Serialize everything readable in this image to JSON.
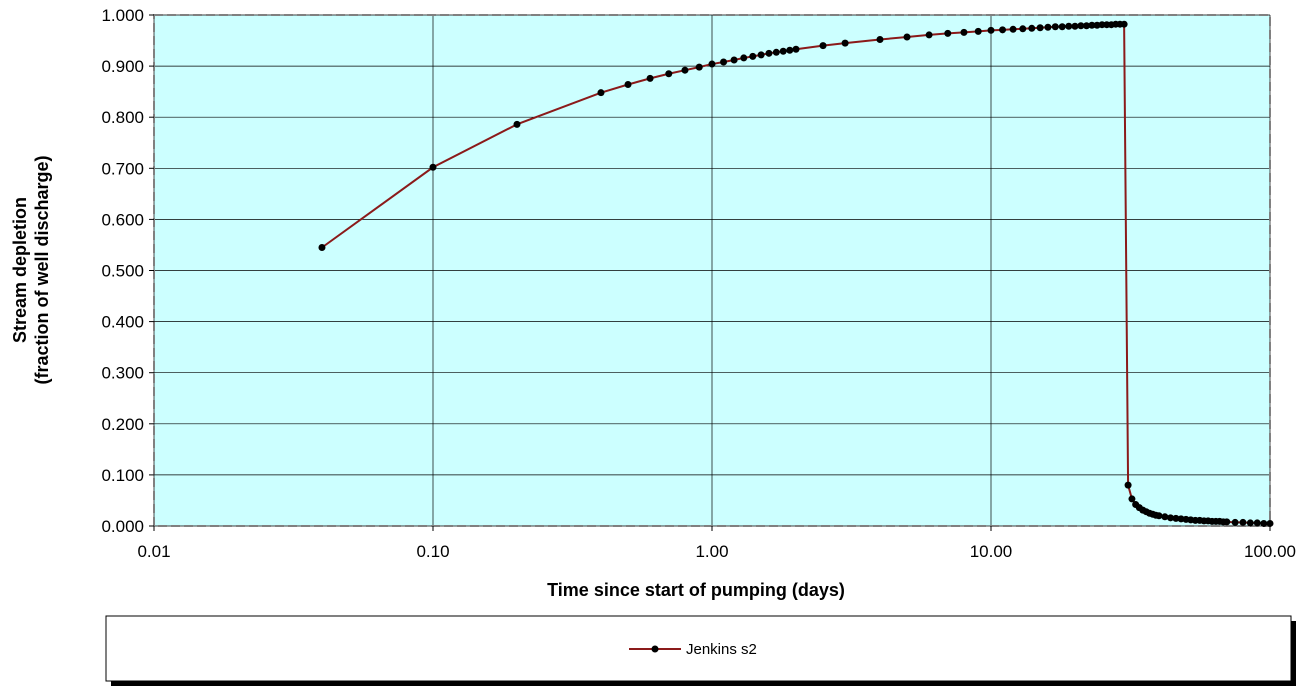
{
  "chart_data": {
    "type": "line",
    "title": "",
    "xlabel": "Time since start of pumping (days)",
    "ylabel": "Stream depletion",
    "ylabel_line2": "(fraction of well discharge)",
    "x_scale": "log",
    "xlim": [
      0.01,
      100
    ],
    "ylim": [
      0,
      1
    ],
    "grid": true,
    "legend_position": "bottom",
    "x_ticks": [
      "0.01",
      "0.10",
      "1.00",
      "10.00",
      "100.00"
    ],
    "y_ticks": [
      "0.000",
      "0.100",
      "0.200",
      "0.300",
      "0.400",
      "0.500",
      "0.600",
      "0.700",
      "0.800",
      "0.900",
      "1.000"
    ],
    "colors": {
      "plot_background": "#ccffff",
      "line": "#8b1a1a",
      "marker": "#000000"
    },
    "series": [
      {
        "name": "Jenkins s2",
        "points": [
          [
            0.04,
            0.545
          ],
          [
            0.1,
            0.702
          ],
          [
            0.2,
            0.786
          ],
          [
            0.4,
            0.848
          ],
          [
            0.5,
            0.864
          ],
          [
            0.6,
            0.876
          ],
          [
            0.7,
            0.885
          ],
          [
            0.8,
            0.892
          ],
          [
            0.9,
            0.898
          ],
          [
            1.0,
            0.904
          ],
          [
            1.1,
            0.908
          ],
          [
            1.2,
            0.912
          ],
          [
            1.3,
            0.916
          ],
          [
            1.4,
            0.919
          ],
          [
            1.5,
            0.922
          ],
          [
            1.6,
            0.925
          ],
          [
            1.7,
            0.927
          ],
          [
            1.8,
            0.929
          ],
          [
            1.9,
            0.931
          ],
          [
            2.0,
            0.933
          ],
          [
            2.5,
            0.94
          ],
          [
            3.0,
            0.945
          ],
          [
            4.0,
            0.952
          ],
          [
            5.0,
            0.957
          ],
          [
            6.0,
            0.961
          ],
          [
            7.0,
            0.964
          ],
          [
            8.0,
            0.966
          ],
          [
            9.0,
            0.968
          ],
          [
            10.0,
            0.97
          ],
          [
            11.0,
            0.971
          ],
          [
            12.0,
            0.972
          ],
          [
            13.0,
            0.973
          ],
          [
            14.0,
            0.974
          ],
          [
            15.0,
            0.975
          ],
          [
            16.0,
            0.976
          ],
          [
            17.0,
            0.977
          ],
          [
            18.0,
            0.977
          ],
          [
            19.0,
            0.978
          ],
          [
            20.0,
            0.978
          ],
          [
            21.0,
            0.979
          ],
          [
            22.0,
            0.979
          ],
          [
            23.0,
            0.98
          ],
          [
            24.0,
            0.98
          ],
          [
            25.0,
            0.981
          ],
          [
            26.0,
            0.981
          ],
          [
            27.0,
            0.981
          ],
          [
            28.0,
            0.982
          ],
          [
            29.0,
            0.982
          ],
          [
            30.0,
            0.982
          ],
          [
            31.0,
            0.08
          ],
          [
            32.0,
            0.053
          ],
          [
            33.0,
            0.042
          ],
          [
            34.0,
            0.036
          ],
          [
            35.0,
            0.031
          ],
          [
            36.0,
            0.028
          ],
          [
            37.0,
            0.025
          ],
          [
            38.0,
            0.023
          ],
          [
            39.0,
            0.021
          ],
          [
            40.0,
            0.02
          ],
          [
            42.0,
            0.018
          ],
          [
            44.0,
            0.016
          ],
          [
            46.0,
            0.015
          ],
          [
            48.0,
            0.014
          ],
          [
            50.0,
            0.013
          ],
          [
            52.0,
            0.012
          ],
          [
            54.0,
            0.011
          ],
          [
            56.0,
            0.011
          ],
          [
            58.0,
            0.01
          ],
          [
            60.0,
            0.01
          ],
          [
            62.0,
            0.009
          ],
          [
            64.0,
            0.009
          ],
          [
            66.0,
            0.009
          ],
          [
            68.0,
            0.008
          ],
          [
            70.0,
            0.008
          ],
          [
            75.0,
            0.007
          ],
          [
            80.0,
            0.007
          ],
          [
            85.0,
            0.006
          ],
          [
            90.0,
            0.006
          ],
          [
            95.0,
            0.005
          ],
          [
            100.0,
            0.005
          ]
        ]
      }
    ]
  }
}
